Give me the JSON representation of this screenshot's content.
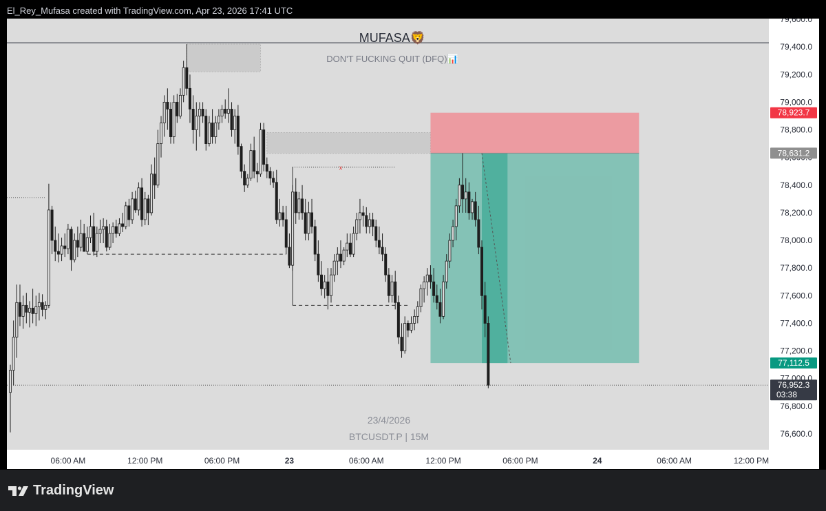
{
  "header": {
    "credit": "El_Rey_Mufasa created with TradingView.com, Apr 23, 2026 17:41 UTC"
  },
  "chart_title": "MUFASA🦁",
  "chart_subtitle": "DON'T FUCKING QUIT (DFQ)📊",
  "watermark": {
    "date": "23/4/2026",
    "symbol": "BTCUSDT.P | 15M"
  },
  "footer": {
    "brand": "TradingView"
  },
  "colors": {
    "background": "#dcdcdc",
    "candle": "#1e1e1e",
    "stop_zone": "#ef8f96",
    "profit_zone": "#7cbfb2",
    "profit_zone_dark": "#4aae9b",
    "stop_label": "#f23645",
    "entry_label": "#8f8f8f",
    "target_label": "#089981",
    "last_label": "#363a45"
  },
  "chart_data": {
    "type": "candlestick",
    "symbol": "BTCUSDT.P",
    "interval": "15M",
    "ylim": [
      76500,
      79600
    ],
    "y_ticks": [
      "79,600.0",
      "79,400.0",
      "79,200.0",
      "79,000.0",
      "78,800.0",
      "78,600.0",
      "78,400.0",
      "78,200.0",
      "78,000.0",
      "77,800.0",
      "77,600.0",
      "77,400.0",
      "77,200.0",
      "77,000.0",
      "76,800.0",
      "76,600.0"
    ],
    "x_ticks": [
      {
        "label": "06:00 AM",
        "bar": 18,
        "bold": false
      },
      {
        "label": "12:00 PM",
        "bar": 42,
        "bold": false
      },
      {
        "label": "06:00 PM",
        "bar": 66,
        "bold": false
      },
      {
        "label": "23",
        "bar": 87,
        "bold": true
      },
      {
        "label": "06:00 AM",
        "bar": 111,
        "bold": false
      },
      {
        "label": "12:00 PM",
        "bar": 135,
        "bold": false
      },
      {
        "label": "06:00 PM",
        "bar": 159,
        "bold": false
      },
      {
        "label": "24",
        "bar": 183,
        "bold": true
      },
      {
        "label": "06:00 AM",
        "bar": 207,
        "bold": false
      },
      {
        "label": "12:00 PM",
        "bar": 231,
        "bold": false
      }
    ],
    "price_labels": [
      {
        "name": "stop",
        "value": "78,923.7"
      },
      {
        "name": "entry",
        "value": "78,631.2"
      },
      {
        "name": "target",
        "value": "77,112.5"
      },
      {
        "name": "last",
        "value": "76,952.3",
        "countdown": "03:38"
      }
    ],
    "position": {
      "side": "short",
      "entry": 78631.2,
      "stop": 78923.7,
      "target": 77112.5,
      "start_bar": 131,
      "signal_bar": 147,
      "signal_end_bar": 155,
      "end_bar": 196
    },
    "supply_zones": [
      {
        "top": 79420,
        "bottom": 79220,
        "start_bar": 55,
        "end_bar": 78
      },
      {
        "top": 78780,
        "bottom": 78630,
        "start_bar": 80,
        "end_bar": 131
      }
    ],
    "lines": {
      "top_level": 79430,
      "current_price": 76952.3,
      "left_dotted": 78310,
      "level_1": 77900,
      "level_2": 77530,
      "level_3": 78530
    },
    "candles": [
      [
        76900,
        77100,
        76610,
        77060
      ],
      [
        77060,
        77420,
        76950,
        77300
      ],
      [
        77300,
        77680,
        77150,
        77550
      ],
      [
        77550,
        77680,
        77380,
        77450
      ],
      [
        77450,
        77600,
        77360,
        77530
      ],
      [
        77530,
        77620,
        77400,
        77480
      ],
      [
        77480,
        77560,
        77370,
        77510
      ],
      [
        77510,
        77650,
        77400,
        77470
      ],
      [
        77470,
        77600,
        77380,
        77520
      ],
      [
        77520,
        77620,
        77420,
        77550
      ],
      [
        77550,
        77610,
        77450,
        77500
      ],
      [
        77500,
        77560,
        77430,
        77530
      ],
      [
        77530,
        78410,
        77510,
        78220
      ],
      [
        78220,
        78250,
        77900,
        78000
      ],
      [
        78000,
        78100,
        77850,
        77920
      ],
      [
        77920,
        78050,
        77840,
        77900
      ],
      [
        77900,
        78020,
        77850,
        77960
      ],
      [
        77960,
        78050,
        77880,
        77940
      ],
      [
        77940,
        78120,
        77900,
        78080
      ],
      [
        78080,
        78100,
        77780,
        77860
      ],
      [
        77860,
        78050,
        77840,
        78000
      ],
      [
        78000,
        78100,
        77880,
        77950
      ],
      [
        77950,
        78150,
        77920,
        78050
      ],
      [
        78050,
        78120,
        77950,
        77920
      ],
      [
        77920,
        78100,
        77900,
        78020
      ],
      [
        78020,
        78180,
        77980,
        78100
      ],
      [
        78100,
        78200,
        77890,
        77920
      ],
      [
        77920,
        78100,
        77880,
        78050
      ],
      [
        78050,
        78150,
        77980,
        78080
      ],
      [
        78080,
        78160,
        77980,
        78100
      ],
      [
        78100,
        78150,
        77920,
        77950
      ],
      [
        77950,
        78120,
        77930,
        78050
      ],
      [
        78050,
        78130,
        77980,
        78100
      ],
      [
        78100,
        78150,
        78020,
        78050
      ],
      [
        78050,
        78160,
        78030,
        78120
      ],
      [
        78120,
        78200,
        78060,
        78100
      ],
      [
        78100,
        78280,
        78080,
        78250
      ],
      [
        78250,
        78300,
        78100,
        78150
      ],
      [
        78150,
        78350,
        78120,
        78300
      ],
      [
        78300,
        78360,
        78200,
        78220
      ],
      [
        78220,
        78420,
        78180,
        78380
      ],
      [
        78380,
        78450,
        78100,
        78150
      ],
      [
        78150,
        78350,
        78110,
        78300
      ],
      [
        78300,
        78330,
        78110,
        78200
      ],
      [
        78200,
        78550,
        78180,
        78480
      ],
      [
        78480,
        78600,
        78300,
        78400
      ],
      [
        78400,
        78800,
        78380,
        78700
      ],
      [
        78700,
        78900,
        78600,
        78850
      ],
      [
        78850,
        79050,
        78750,
        79000
      ],
      [
        79000,
        79100,
        78800,
        78950
      ],
      [
        78950,
        79000,
        78700,
        78750
      ],
      [
        78750,
        79050,
        78700,
        79000
      ],
      [
        79000,
        79060,
        78850,
        78900
      ],
      [
        78900,
        79100,
        78880,
        79050
      ],
      [
        79050,
        79300,
        79000,
        79250
      ],
      [
        79250,
        79420,
        79050,
        79100
      ],
      [
        79100,
        79200,
        78850,
        78950
      ],
      [
        78950,
        79050,
        78700,
        78800
      ],
      [
        78800,
        79000,
        78650,
        78900
      ],
      [
        78900,
        79000,
        78750,
        78950
      ],
      [
        78950,
        79000,
        78850,
        78900
      ],
      [
        78900,
        78950,
        78650,
        78700
      ],
      [
        78700,
        78900,
        78680,
        78850
      ],
      [
        78850,
        78950,
        78700,
        78750
      ],
      [
        78750,
        78900,
        78700,
        78850
      ],
      [
        78850,
        78950,
        78800,
        78900
      ],
      [
        78900,
        78980,
        78850,
        78950
      ],
      [
        78950,
        79020,
        78880,
        78920
      ],
      [
        78920,
        79100,
        78850,
        78950
      ],
      [
        78950,
        79000,
        78750,
        78800
      ],
      [
        78800,
        78950,
        78700,
        78900
      ],
      [
        78900,
        78980,
        78620,
        78680
      ],
      [
        78680,
        78700,
        78450,
        78500
      ],
      [
        78500,
        78550,
        78350,
        78400
      ],
      [
        78400,
        78480,
        78380,
        78450
      ],
      [
        78450,
        78700,
        78430,
        78650
      ],
      [
        78650,
        78750,
        78450,
        78500
      ],
      [
        78500,
        78560,
        78420,
        78480
      ],
      [
        78480,
        78850,
        78460,
        78800
      ],
      [
        78800,
        78850,
        78500,
        78550
      ],
      [
        78550,
        78600,
        78450,
        78500
      ],
      [
        78500,
        78530,
        78400,
        78450
      ],
      [
        78450,
        78500,
        78380,
        78420
      ],
      [
        78420,
        78510,
        78120,
        78150
      ],
      [
        78150,
        78300,
        78100,
        78200
      ],
      [
        78200,
        78250,
        78100,
        78150
      ],
      [
        78150,
        78250,
        77900,
        77950
      ],
      [
        77950,
        78050,
        77800,
        77820
      ],
      [
        77820,
        78400,
        77780,
        78350
      ],
      [
        78350,
        78450,
        78120,
        78200
      ],
      [
        78200,
        78350,
        78150,
        78300
      ],
      [
        78300,
        78400,
        78150,
        78200
      ],
      [
        78200,
        78300,
        78000,
        78050
      ],
      [
        78050,
        78280,
        78000,
        78200
      ],
      [
        78200,
        78300,
        78050,
        78100
      ],
      [
        78100,
        78150,
        77850,
        77900
      ],
      [
        77900,
        78000,
        77700,
        77750
      ],
      [
        77750,
        77850,
        77600,
        77650
      ],
      [
        77650,
        77750,
        77580,
        77700
      ],
      [
        77700,
        77800,
        77500,
        77600
      ],
      [
        77600,
        77800,
        77550,
        77750
      ],
      [
        77750,
        77900,
        77700,
        77850
      ],
      [
        77850,
        77950,
        77750,
        77900
      ],
      [
        77900,
        78000,
        77800,
        77850
      ],
      [
        77850,
        77950,
        77820,
        77930
      ],
      [
        77930,
        78050,
        77880,
        77980
      ],
      [
        77980,
        78050,
        77880,
        77900
      ],
      [
        77900,
        78100,
        77880,
        78050
      ],
      [
        78050,
        78200,
        78000,
        78150
      ],
      [
        78150,
        78300,
        78050,
        78200
      ],
      [
        78200,
        78250,
        78100,
        78180
      ],
      [
        78180,
        78240,
        78050,
        78100
      ],
      [
        78100,
        78200,
        78050,
        78150
      ],
      [
        78150,
        78200,
        78030,
        78100
      ],
      [
        78100,
        78150,
        77950,
        78000
      ],
      [
        78000,
        78100,
        77900,
        77950
      ],
      [
        77950,
        78050,
        77850,
        77900
      ],
      [
        77900,
        77950,
        77700,
        77750
      ],
      [
        77750,
        77800,
        77550,
        77600
      ],
      [
        77600,
        77750,
        77550,
        77700
      ],
      [
        77700,
        77780,
        77500,
        77550
      ],
      [
        77550,
        77600,
        77250,
        77300
      ],
      [
        77300,
        77400,
        77150,
        77200
      ],
      [
        77200,
        77450,
        77180,
        77400
      ],
      [
        77400,
        77420,
        77300,
        77350
      ],
      [
        77350,
        77450,
        77330,
        77400
      ],
      [
        77400,
        77500,
        77350,
        77450
      ],
      [
        77450,
        77560,
        77400,
        77520
      ],
      [
        77520,
        77680,
        77480,
        77650
      ],
      [
        77650,
        77740,
        77550,
        77700
      ],
      [
        77700,
        77800,
        77600,
        77750
      ],
      [
        77750,
        77820,
        77650,
        77700
      ],
      [
        77700,
        77800,
        77550,
        77600
      ],
      [
        77600,
        77680,
        77500,
        77550
      ],
      [
        77550,
        77650,
        77400,
        77450
      ],
      [
        77450,
        77750,
        77430,
        77700
      ],
      [
        77700,
        77900,
        77650,
        77850
      ],
      [
        77850,
        78050,
        77800,
        78000
      ],
      [
        78000,
        78150,
        77950,
        78100
      ],
      [
        78100,
        78300,
        78000,
        78250
      ],
      [
        78250,
        78450,
        78200,
        78400
      ],
      [
        78400,
        78631,
        78200,
        78300
      ],
      [
        78300,
        78450,
        78200,
        78350
      ],
      [
        78350,
        78420,
        78150,
        78200
      ],
      [
        78200,
        78300,
        78150,
        78280
      ],
      [
        78280,
        78350,
        78100,
        78150
      ],
      [
        78150,
        78250,
        77900,
        77950
      ],
      [
        77950,
        78000,
        77500,
        77600
      ],
      [
        77600,
        77700,
        77300,
        77400
      ],
      [
        77400,
        77450,
        76930,
        76952
      ]
    ]
  }
}
